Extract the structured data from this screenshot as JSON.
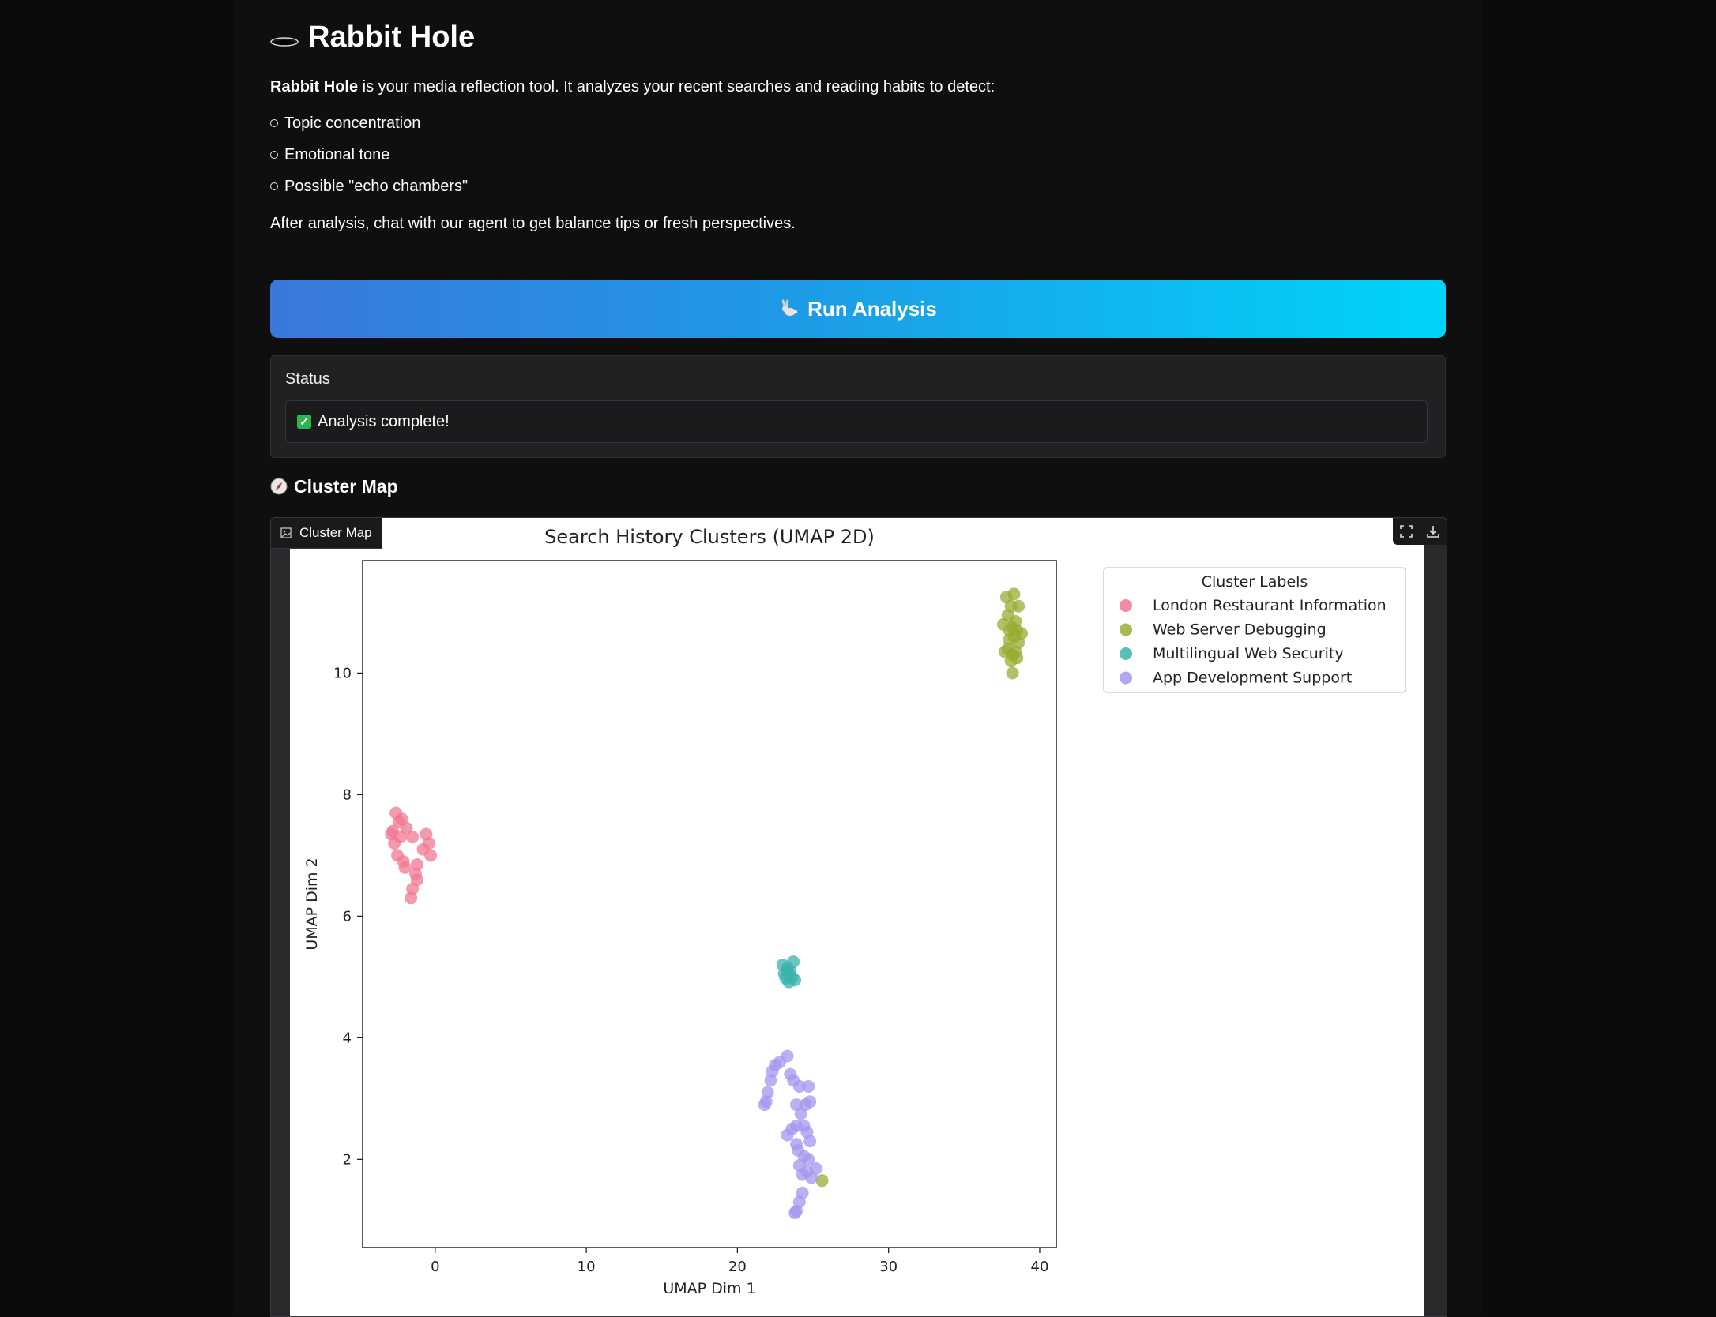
{
  "header": {
    "title": "Rabbit Hole",
    "icon": "hole-icon"
  },
  "intro": {
    "lead_bold": "Rabbit Hole",
    "lead_rest": " is your media reflection tool. It analyzes your recent searches and reading habits to detect:",
    "bullets": [
      "Topic concentration",
      "Emotional tone",
      "Possible \"echo chambers\""
    ],
    "after": "After analysis, chat with our agent to get balance tips or fresh perspectives."
  },
  "run_button": {
    "label": "Run Analysis",
    "icon": "rabbit-icon"
  },
  "status": {
    "label": "Status",
    "value": "Analysis complete!",
    "icon": "check-icon"
  },
  "cluster_section": {
    "heading": "Cluster Map",
    "icon": "compass-icon",
    "tab_label": "Cluster Map"
  },
  "colors": {
    "button_gradient_start": "#3a78dc",
    "button_gradient_end": "#00d4fb",
    "status_check": "#2fb34a"
  },
  "chart_data": {
    "type": "scatter",
    "title": "Search History Clusters (UMAP 2D)",
    "xlabel": "UMAP Dim 1",
    "ylabel": "UMAP Dim 2",
    "xlim": [
      -4.8,
      41.1
    ],
    "ylim": [
      0.55,
      11.85
    ],
    "xticks": [
      0,
      10,
      20,
      30,
      40
    ],
    "yticks": [
      2,
      4,
      6,
      8,
      10
    ],
    "grid": false,
    "legend": {
      "title": "Cluster Labels",
      "placement": "top-right"
    },
    "series": [
      {
        "name": "London Restaurant Information",
        "color": "#f07891",
        "points": [
          [
            -2.6,
            7.7
          ],
          [
            -2.2,
            7.6
          ],
          [
            -2.8,
            7.4
          ],
          [
            -2.3,
            7.3
          ],
          [
            -2.7,
            7.2
          ],
          [
            -1.9,
            7.45
          ],
          [
            -1.5,
            7.3
          ],
          [
            -0.6,
            7.35
          ],
          [
            -0.4,
            7.2
          ],
          [
            -0.8,
            7.1
          ],
          [
            -0.3,
            7.0
          ],
          [
            -2.5,
            7.0
          ],
          [
            -2.1,
            6.9
          ],
          [
            -1.2,
            6.85
          ],
          [
            -2.0,
            6.8
          ],
          [
            -1.3,
            6.7
          ],
          [
            -1.2,
            6.6
          ],
          [
            -1.5,
            6.45
          ],
          [
            -1.6,
            6.3
          ],
          [
            -2.9,
            7.35
          ],
          [
            -2.4,
            7.55
          ]
        ]
      },
      {
        "name": "Web Server Debugging",
        "color": "#9aab32",
        "points": [
          [
            38.3,
            11.3
          ],
          [
            37.8,
            11.25
          ],
          [
            38.1,
            11.1
          ],
          [
            38.6,
            11.1
          ],
          [
            37.9,
            10.95
          ],
          [
            38.4,
            10.85
          ],
          [
            37.6,
            10.8
          ],
          [
            38.2,
            10.75
          ],
          [
            38.0,
            10.7
          ],
          [
            38.5,
            10.7
          ],
          [
            38.8,
            10.65
          ],
          [
            38.3,
            10.6
          ],
          [
            38.0,
            10.55
          ],
          [
            38.6,
            10.5
          ],
          [
            37.9,
            10.4
          ],
          [
            38.4,
            10.35
          ],
          [
            37.7,
            10.35
          ],
          [
            38.2,
            10.3
          ],
          [
            38.5,
            10.25
          ],
          [
            38.1,
            10.2
          ],
          [
            38.2,
            10.0
          ],
          [
            25.6,
            1.65
          ]
        ]
      },
      {
        "name": "Multilingual Web Security",
        "color": "#3bb3aa",
        "points": [
          [
            23.0,
            5.2
          ],
          [
            23.7,
            5.25
          ],
          [
            23.3,
            5.15
          ],
          [
            23.5,
            5.1
          ],
          [
            23.1,
            5.05
          ],
          [
            23.6,
            5.0
          ],
          [
            23.2,
            4.98
          ],
          [
            23.8,
            4.95
          ],
          [
            23.4,
            4.92
          ],
          [
            23.3,
            5.1
          ]
        ]
      },
      {
        "name": "App Development Support",
        "color": "#a795ee",
        "points": [
          [
            23.3,
            3.7
          ],
          [
            22.8,
            3.6
          ],
          [
            22.5,
            3.55
          ],
          [
            22.3,
            3.45
          ],
          [
            23.5,
            3.4
          ],
          [
            22.2,
            3.3
          ],
          [
            23.7,
            3.3
          ],
          [
            24.1,
            3.2
          ],
          [
            24.7,
            3.2
          ],
          [
            22.0,
            3.1
          ],
          [
            21.9,
            2.95
          ],
          [
            21.8,
            2.9
          ],
          [
            23.9,
            2.9
          ],
          [
            24.5,
            2.9
          ],
          [
            24.8,
            2.95
          ],
          [
            24.2,
            2.75
          ],
          [
            23.9,
            2.55
          ],
          [
            24.4,
            2.55
          ],
          [
            23.6,
            2.5
          ],
          [
            24.6,
            2.45
          ],
          [
            23.3,
            2.4
          ],
          [
            23.9,
            2.25
          ],
          [
            24.8,
            2.3
          ],
          [
            24.0,
            2.15
          ],
          [
            24.4,
            2.05
          ],
          [
            24.7,
            2.0
          ],
          [
            24.1,
            1.9
          ],
          [
            25.2,
            1.85
          ],
          [
            24.6,
            1.8
          ],
          [
            24.3,
            1.75
          ],
          [
            24.9,
            1.7
          ],
          [
            24.3,
            1.45
          ],
          [
            24.1,
            1.3
          ],
          [
            23.9,
            1.15
          ],
          [
            23.8,
            1.12
          ]
        ]
      }
    ]
  }
}
